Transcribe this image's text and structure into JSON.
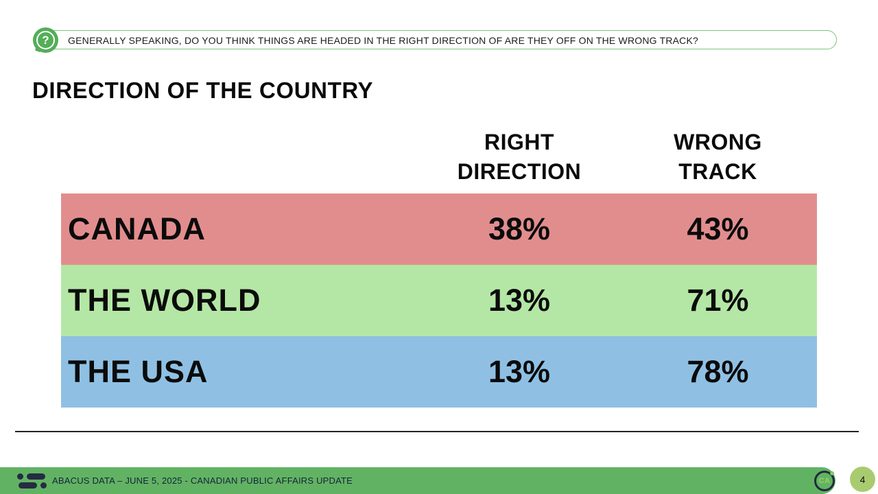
{
  "question_banner": {
    "icon_name": "question-mark-icon",
    "glyph": "?",
    "text": "GENERALLY SPEAKING, DO YOU THINK THINGS ARE HEADED IN THE RIGHT DIRECTION OF ARE THEY OFF ON THE WRONG TRACK?"
  },
  "title": "DIRECTION OF THE COUNTRY",
  "table": {
    "header": {
      "col_right": "RIGHT\nDIRECTION",
      "col_wrong": "WRONG\nTRACK"
    },
    "rows": [
      {
        "label": "CANADA",
        "right": "38%",
        "wrong": "43%",
        "bg": "#E28D8D"
      },
      {
        "label": "THE WORLD",
        "right": "13%",
        "wrong": "71%",
        "bg": "#B4E7A5"
      },
      {
        "label": "THE USA",
        "right": "13%",
        "wrong": "78%",
        "bg": "#8FC0E3"
      }
    ]
  },
  "footer": {
    "text": "ABACUS DATA – JUNE 5, 2025 - CANADIAN PUBLIC AFFAIRS UPDATE",
    "ca_badge_text": "CA",
    "page_number": "4"
  },
  "colors": {
    "row_canada": "#E28D8D",
    "row_world": "#B4E7A5",
    "row_usa": "#8FC0E3",
    "footer_green": "#61B363",
    "icon_green": "#54AE58",
    "banner_border_green": "#7CC57E",
    "page_circle_green": "#A8CB70",
    "navy": "#222A3E"
  },
  "chart_data": {
    "type": "table",
    "title": "DIRECTION OF THE COUNTRY",
    "question": "GENERALLY SPEAKING, DO YOU THINK THINGS ARE HEADED IN THE RIGHT DIRECTION OF ARE THEY OFF ON THE WRONG TRACK?",
    "columns": [
      "RIGHT DIRECTION",
      "WRONG TRACK"
    ],
    "categories": [
      "CANADA",
      "THE WORLD",
      "THE USA"
    ],
    "series": [
      {
        "name": "RIGHT DIRECTION",
        "values": [
          38,
          13,
          13
        ]
      },
      {
        "name": "WRONG TRACK",
        "values": [
          43,
          71,
          78
        ]
      }
    ],
    "units": "percent",
    "row_colors": [
      "#E28D8D",
      "#B4E7A5",
      "#8FC0E3"
    ]
  }
}
